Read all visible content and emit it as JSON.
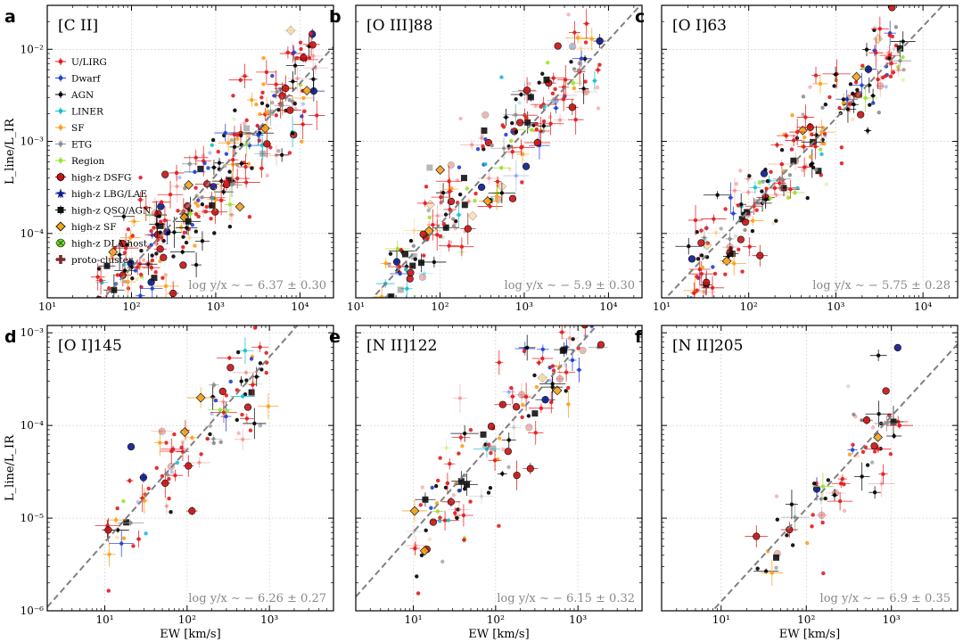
{
  "colors": {
    "U/LIRG": "#e41a1c",
    "Dwarf": "#1f3fd1",
    "AGN": "#000000",
    "LINER": "#17becf",
    "SF": "#ff9f1a",
    "ETG": "#8c8c8c",
    "Region": "#9be22d",
    "high-z DSFG": "#cc1111",
    "high-z LBG/LAE": "#0b1a8f",
    "high-z QSO/AGN": "#111111",
    "high-z SF": "#f2a21b",
    "high-z DLA host": "#77dd33",
    "proto-cluster": "#7a2b2b"
  },
  "chart_data": [
    {
      "panel_letter": "a",
      "title": "[C II]",
      "type": "scatter",
      "xscale": "log",
      "yscale": "log",
      "xlim": [
        10,
        25000
      ],
      "ylim": [
        2e-05,
        0.03
      ],
      "x_ticks": [
        "10¹",
        "10²",
        "10³",
        "10⁴"
      ],
      "y_ticks": [
        "10⁻²",
        "10⁻³",
        "10⁻⁴"
      ],
      "ylabel": "L_line/L_IR",
      "xlabel": "",
      "fit_offset": -6.37,
      "annotation": "log y/x ∼ − 6.37 ± 0.30",
      "cloud": {
        "n": 320,
        "logx_range": [
          1.6,
          4.2
        ],
        "scatter": 0.3
      },
      "legend": [
        "U/LIRG",
        "Dwarf",
        "AGN",
        "LINER",
        "SF",
        "ETG",
        "Region",
        "high-z DSFG",
        "high-z LBG/LAE",
        "high-z QSO/AGN",
        "high-z SF",
        "high-z DLA host",
        "proto-cluster"
      ]
    },
    {
      "panel_letter": "b",
      "title": "[O III]88",
      "type": "scatter",
      "xscale": "log",
      "yscale": "log",
      "xlim": [
        10,
        25000
      ],
      "ylim": [
        2e-05,
        0.03
      ],
      "x_ticks": [
        "10¹",
        "10²",
        "10³",
        "10⁴"
      ],
      "y_ticks": [],
      "ylabel": "",
      "xlabel": "",
      "fit_offset": -5.9,
      "annotation": "log y/x ∼ − 5.9 ± 0.30",
      "cloud": {
        "n": 220,
        "logx_range": [
          1.3,
          3.9
        ],
        "scatter": 0.3
      }
    },
    {
      "panel_letter": "c",
      "title": "[O I]63",
      "type": "scatter",
      "xscale": "log",
      "yscale": "log",
      "xlim": [
        10,
        25000
      ],
      "ylim": [
        2e-05,
        0.03
      ],
      "x_ticks": [
        "10¹",
        "10²",
        "10³",
        "10⁴"
      ],
      "y_ticks": [],
      "ylabel": "",
      "xlabel": "",
      "fit_offset": -5.75,
      "annotation": "log y/x ∼ − 5.75 ± 0.28",
      "cloud": {
        "n": 230,
        "logx_range": [
          1.3,
          3.8
        ],
        "scatter": 0.28
      }
    },
    {
      "panel_letter": "d",
      "title": "[O I]145",
      "type": "scatter",
      "xscale": "log",
      "yscale": "log",
      "xlim": [
        2,
        6000
      ],
      "ylim": [
        1e-06,
        0.0012
      ],
      "x_ticks": [
        "10¹",
        "10²",
        "10³"
      ],
      "y_ticks": [
        "10⁻³",
        "10⁻⁴",
        "10⁻⁵",
        "10⁻⁶"
      ],
      "ylabel": "L_line/L_IR",
      "xlabel": "EW [km/s]",
      "fit_offset": -6.26,
      "annotation": "log y/x ∼ − 6.26 ± 0.27",
      "cloud": {
        "n": 110,
        "logx_range": [
          1.0,
          3.0
        ],
        "scatter": 0.27
      }
    },
    {
      "panel_letter": "e",
      "title": "[N II]122",
      "type": "scatter",
      "xscale": "log",
      "yscale": "log",
      "xlim": [
        2,
        6000
      ],
      "ylim": [
        1e-06,
        0.0012
      ],
      "x_ticks": [
        "10¹",
        "10²",
        "10³"
      ],
      "y_ticks": [],
      "ylabel": "",
      "xlabel": "EW [km/s]",
      "fit_offset": -6.15,
      "annotation": "log y/x ∼ − 6.15 ± 0.32",
      "cloud": {
        "n": 150,
        "logx_range": [
          1.0,
          3.3
        ],
        "scatter": 0.32
      }
    },
    {
      "panel_letter": "f",
      "title": "[N II]205",
      "type": "scatter",
      "xscale": "log",
      "yscale": "log",
      "xlim": [
        2,
        6000
      ],
      "ylim": [
        1e-06,
        0.0012
      ],
      "x_ticks": [
        "10¹",
        "10²",
        "10³"
      ],
      "y_ticks": [],
      "ylabel": "",
      "xlabel": "EW [km/s]",
      "fit_offset": -6.9,
      "annotation": "log y/x ∼ − 6.9 ± 0.35",
      "cloud": {
        "n": 70,
        "logx_range": [
          1.4,
          3.1
        ],
        "scatter": 0.35
      }
    }
  ]
}
